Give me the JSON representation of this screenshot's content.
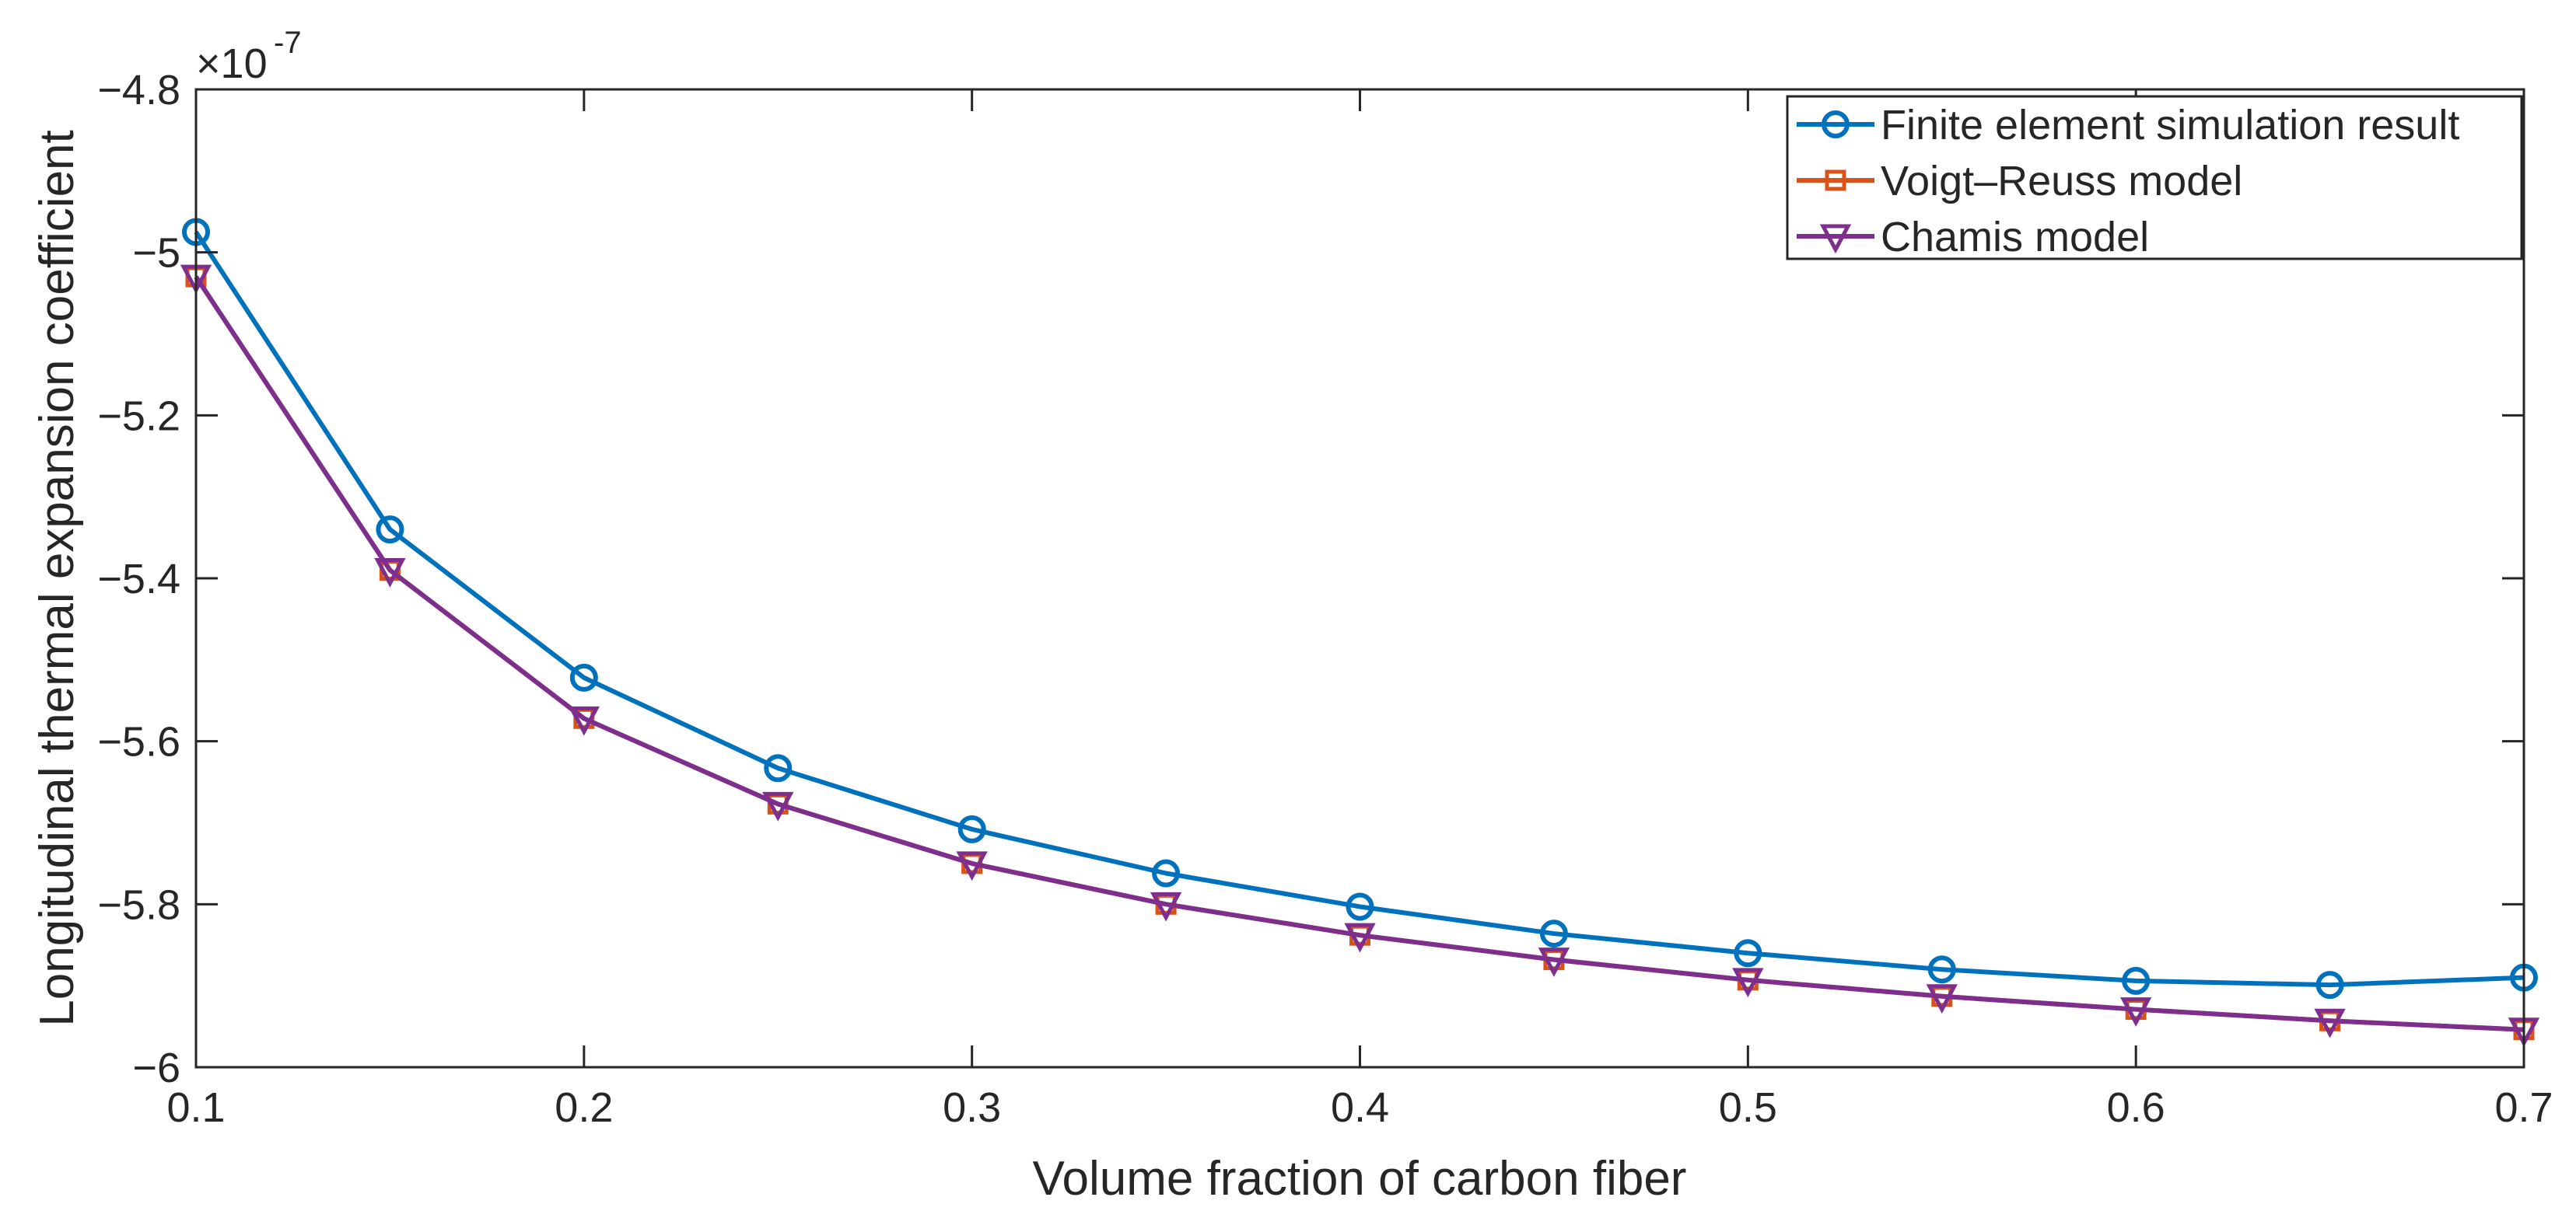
{
  "chart_data": {
    "type": "line",
    "title": "",
    "xlabel": "Volume fraction of carbon fiber",
    "ylabel": "Longitudinal thermal expansion coefficient",
    "xlim": [
      0.1,
      0.7
    ],
    "ylim": [
      -6.0,
      -4.8
    ],
    "exponent_base": "×10",
    "exponent_power": "-7",
    "x_ticks": [
      "0.1",
      "0.2",
      "0.3",
      "0.4",
      "0.5",
      "0.6",
      "0.7"
    ],
    "y_ticks": [
      "-4.8",
      "-5",
      "-5.2",
      "-5.4",
      "-5.6",
      "-5.8",
      "-6"
    ],
    "x": [
      0.1,
      0.15,
      0.2,
      0.25,
      0.3,
      0.35,
      0.4,
      0.45,
      0.5,
      0.55,
      0.6,
      0.65,
      0.7
    ],
    "series": [
      {
        "name": "Finite element simulation result",
        "color": "#0072BD",
        "marker": "circle",
        "values": [
          -4.975,
          -5.34,
          -5.522,
          -5.633,
          -5.708,
          -5.762,
          -5.803,
          -5.836,
          -5.86,
          -5.88,
          -5.894,
          -5.899,
          -5.89
        ]
      },
      {
        "name": "Voigt–Reuss model",
        "color": "#D95319",
        "marker": "square",
        "values": [
          -5.03,
          -5.39,
          -5.572,
          -5.677,
          -5.75,
          -5.8,
          -5.838,
          -5.868,
          -5.893,
          -5.913,
          -5.929,
          -5.943,
          -5.954
        ]
      },
      {
        "name": "Chamis model",
        "color": "#7E2F8E",
        "marker": "triangle-down",
        "values": [
          -5.03,
          -5.39,
          -5.572,
          -5.677,
          -5.75,
          -5.8,
          -5.838,
          -5.868,
          -5.893,
          -5.913,
          -5.929,
          -5.943,
          -5.954
        ]
      }
    ],
    "grid": false,
    "legend": "top-right"
  }
}
